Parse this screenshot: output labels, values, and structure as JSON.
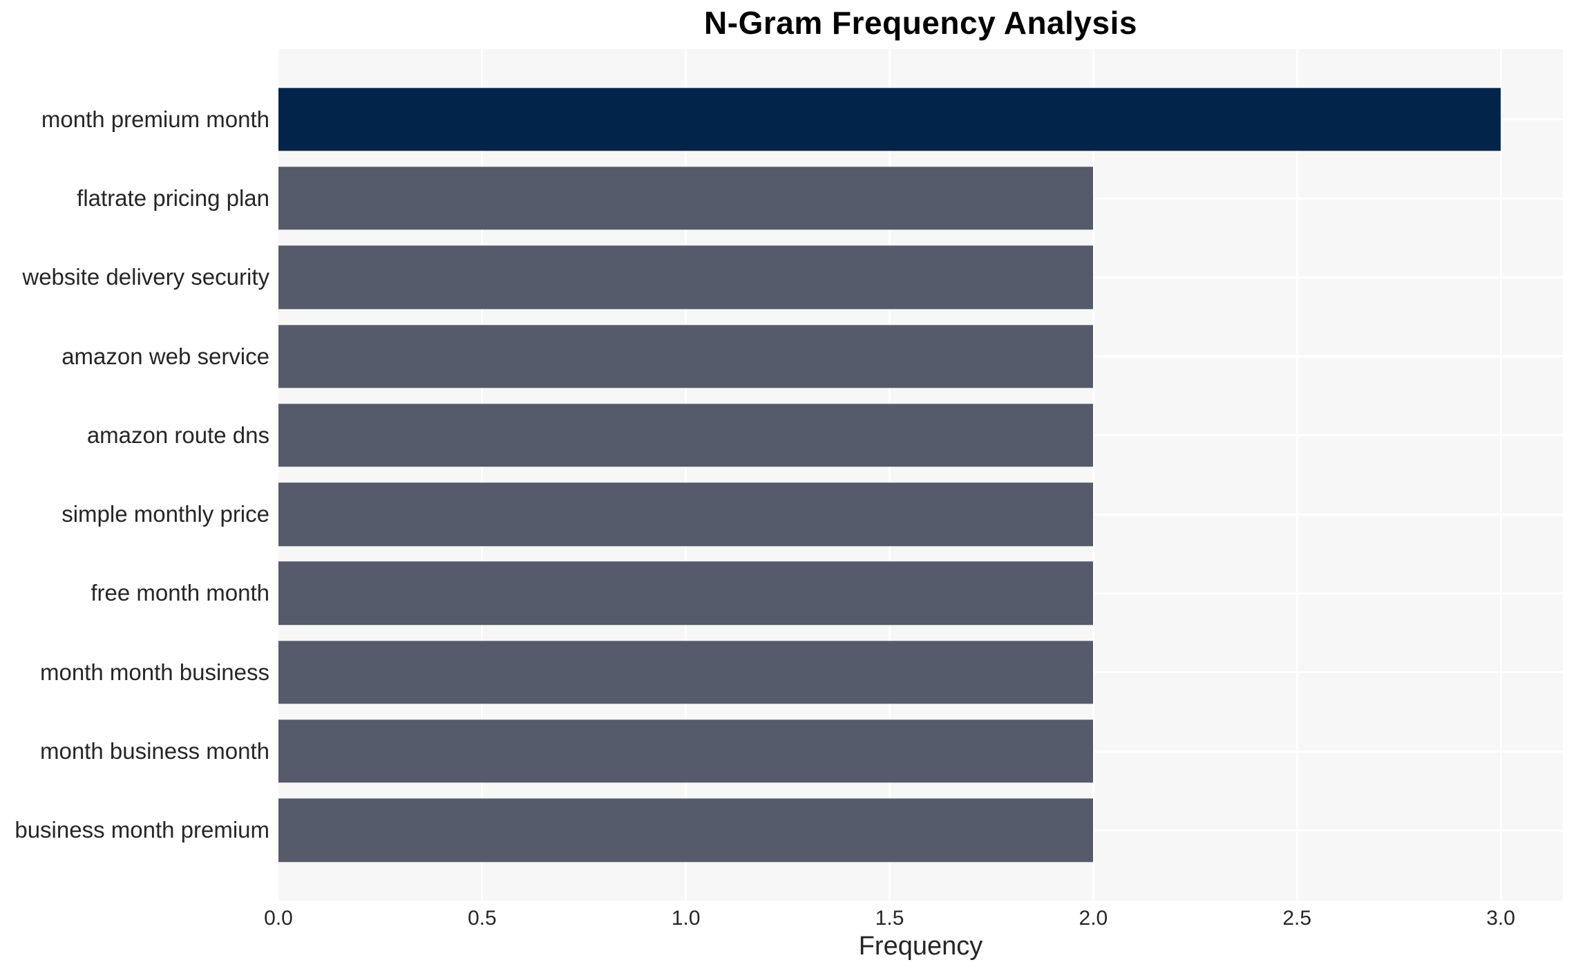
{
  "chart_data": {
    "type": "bar",
    "orientation": "horizontal",
    "title": "N-Gram Frequency Analysis",
    "xlabel": "Frequency",
    "ylabel": "",
    "categories": [
      "month premium month",
      "flatrate pricing plan",
      "website delivery security",
      "amazon web service",
      "amazon route dns",
      "simple monthly price",
      "free month month",
      "month month business",
      "month business month",
      "business month premium"
    ],
    "values": [
      3,
      2,
      2,
      2,
      2,
      2,
      2,
      2,
      2,
      2
    ],
    "bar_colors": [
      "#02234a",
      "#565b6b",
      "#565b6b",
      "#565b6b",
      "#565b6b",
      "#565b6b",
      "#565b6b",
      "#565b6b",
      "#565b6b",
      "#565b6b"
    ],
    "xlim": [
      0,
      3.1525
    ],
    "xticks": [
      0.0,
      0.5,
      1.0,
      1.5,
      2.0,
      2.5,
      3.0
    ],
    "xtick_labels": [
      "0.0",
      "0.5",
      "1.0",
      "1.5",
      "2.0",
      "2.5",
      "3.0"
    ],
    "grid": true,
    "legend": false,
    "colors": {
      "plot_bg": "#f7f7f7",
      "grid": "#ffffff",
      "text": "#262626",
      "title": "#000000",
      "figure_bg": "#ffffff"
    }
  }
}
